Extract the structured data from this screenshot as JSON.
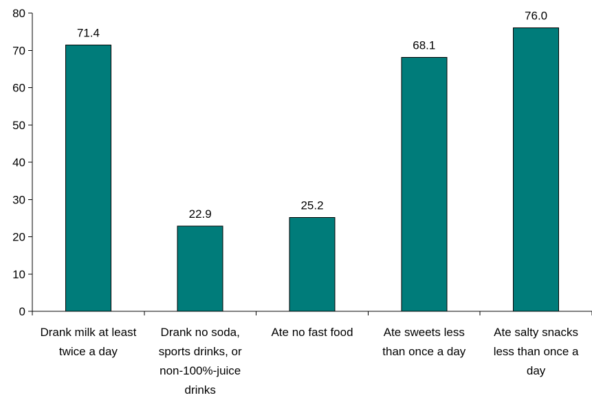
{
  "chart_data": {
    "type": "bar",
    "title": "",
    "xlabel": "",
    "ylabel": "",
    "ylim": [
      0,
      80
    ],
    "yticks": [
      0,
      10,
      20,
      30,
      40,
      50,
      60,
      70,
      80
    ],
    "ytick_labels": [
      "0",
      "10",
      "20",
      "30",
      "40",
      "50",
      "60",
      "70",
      "80"
    ],
    "grid": false,
    "legend": "none",
    "categories": [
      [
        "Drank milk at least",
        "twice a day"
      ],
      [
        "Drank no soda,",
        "sports drinks, or",
        "non-100%-juice",
        "drinks"
      ],
      [
        "Ate no fast food"
      ],
      [
        "Ate sweets less",
        "than once a day"
      ],
      [
        "Ate salty snacks",
        "less than once a",
        "day"
      ]
    ],
    "values": [
      71.4,
      22.9,
      25.2,
      68.1,
      76.0
    ],
    "data_labels": [
      "71.4",
      "22.9",
      "25.2",
      "68.1",
      "76.0"
    ],
    "colors": {
      "bar": "#007C7A",
      "axis": "#000000"
    }
  }
}
